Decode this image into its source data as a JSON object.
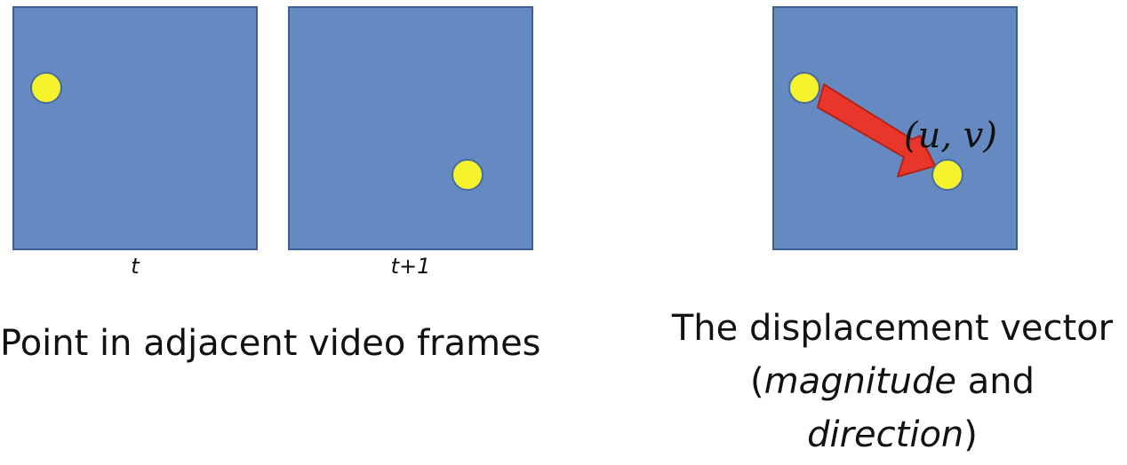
{
  "frames": {
    "left": {
      "label": "t"
    },
    "middle": {
      "label": "t+1"
    },
    "right": {
      "vector_label": "(u, v)"
    }
  },
  "captions": {
    "left": "Point in adjacent video frames",
    "right_line1": "The displacement vector",
    "right_open_paren": "(",
    "right_magnitude": "magnitude",
    "right_and": " and",
    "right_direction": "direction",
    "right_close_paren": ")"
  },
  "colors": {
    "frame_fill": "#6589c1",
    "frame_border": "#3e5f95",
    "point": "#f5f32d",
    "arrow": "#e8372a"
  }
}
